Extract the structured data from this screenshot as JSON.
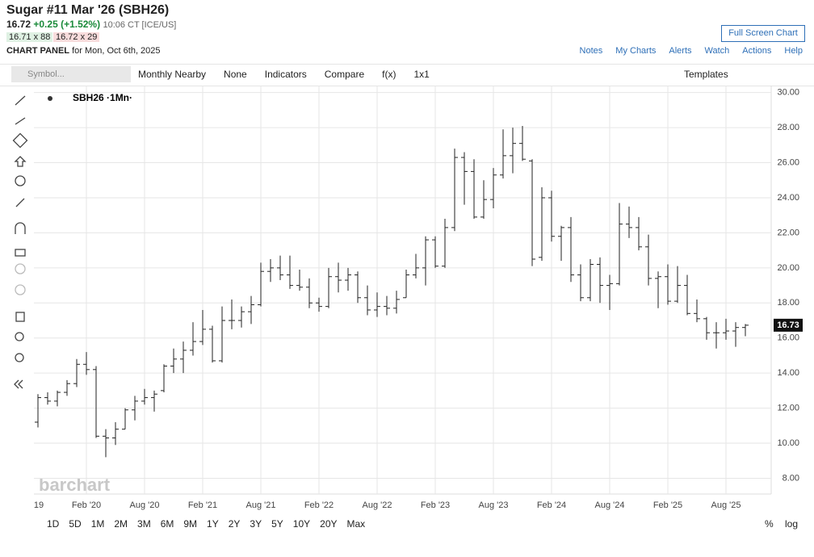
{
  "header": {
    "title": "Sugar #11 Mar '26 (SBH26)",
    "last": "16.72",
    "change": "+0.25 (+1.52%)",
    "time": "10:06 CT [ICE/US]",
    "bid": "16.71 x 88",
    "ask": "16.72 x 29",
    "panel": "CHART PANEL",
    "panel_date": "for Mon, Oct 6th, 2025",
    "fullscreen": "Full Screen Chart",
    "links": [
      "Notes",
      "My Charts",
      "Alerts",
      "Watch",
      "Actions",
      "Help"
    ]
  },
  "toolbar": {
    "symbol": "Symbol...",
    "items": [
      "Monthly Nearby",
      "None",
      "Indicators",
      "Compare",
      "f(x)",
      "1x1"
    ],
    "templates": "Templates"
  },
  "legend": "SBH26 ·1Mn·",
  "watermark": "barchart",
  "bottom": {
    "ranges": [
      "1D",
      "5D",
      "1M",
      "2M",
      "3M",
      "6M",
      "9M",
      "1Y",
      "2Y",
      "3Y",
      "5Y",
      "10Y",
      "20Y",
      "Max"
    ],
    "percent": "%",
    "log": "log"
  },
  "chart_data": {
    "type": "ohlc",
    "color": "#222222",
    "categories": [
      "19",
      null,
      null,
      null,
      null,
      null,
      "Feb '20",
      null,
      null,
      null,
      null,
      null,
      "Aug '20",
      null,
      null,
      null,
      null,
      null,
      "Feb '21",
      null,
      null,
      null,
      null,
      null,
      "Aug '21",
      null,
      null,
      null,
      null,
      null,
      "Feb '22",
      null,
      null,
      null,
      null,
      null,
      "Aug '22",
      null,
      null,
      null,
      null,
      null,
      "Feb '23",
      null,
      null,
      null,
      null,
      null,
      "Aug '23",
      null,
      null,
      null,
      null,
      null,
      "Feb '24",
      null,
      null,
      null,
      null,
      null,
      "Aug '24",
      null,
      null,
      null,
      null,
      null,
      "Feb '25",
      null,
      null,
      null,
      null,
      null,
      "Aug '25",
      null,
      null
    ],
    "open": [
      null,
      11.2,
      12.6,
      12.4,
      12.9,
      13.4,
      14.5,
      14.2,
      10.4,
      10.3,
      10.8,
      11.9,
      12.4,
      12.6,
      13.0,
      14.4,
      14.8,
      15.3,
      15.8,
      16.5,
      14.7,
      17.0,
      17.0,
      17.5,
      17.9,
      19.8,
      20.0,
      19.6,
      19.0,
      18.9,
      18.0,
      17.8,
      19.5,
      19.3,
      19.6,
      18.3,
      17.6,
      17.8,
      17.7,
      18.3,
      19.6,
      20.0,
      21.6,
      20.1,
      22.3,
      26.3,
      25.5,
      22.9,
      23.9,
      25.3,
      26.4,
      27.1,
      26.1,
      20.6,
      24.0,
      21.8,
      22.3,
      19.6,
      18.3,
      20.2,
      19.0,
      19.1,
      22.5,
      22.3,
      21.2,
      19.4,
      19.5,
      18.1,
      19.0,
      17.4,
      17.1,
      16.3,
      16.3,
      16.4,
      16.6
    ],
    "high": [
      null,
      12.8,
      12.9,
      13.0,
      13.6,
      14.8,
      15.2,
      14.4,
      10.8,
      11.2,
      12.0,
      12.7,
      13.1,
      13.0,
      14.5,
      15.4,
      15.8,
      16.9,
      17.6,
      16.7,
      17.8,
      18.2,
      17.8,
      18.4,
      20.3,
      20.5,
      20.7,
      20.7,
      19.9,
      19.4,
      18.3,
      20.0,
      20.3,
      20.0,
      19.8,
      19.0,
      18.6,
      18.4,
      18.7,
      19.9,
      20.8,
      21.8,
      21.8,
      22.8,
      26.8,
      26.6,
      26.2,
      25.0,
      25.7,
      27.9,
      28.0,
      28.1,
      26.2,
      24.6,
      24.4,
      22.4,
      22.9,
      20.2,
      20.5,
      20.6,
      19.6,
      23.7,
      23.5,
      22.9,
      21.9,
      19.8,
      20.2,
      20.1,
      19.6,
      18.2,
      17.2,
      16.9,
      17.1,
      16.9,
      16.8
    ],
    "low": [
      null,
      10.9,
      12.2,
      12.1,
      12.7,
      13.2,
      13.9,
      10.3,
      9.2,
      9.9,
      10.8,
      11.3,
      12.2,
      11.8,
      12.9,
      14.0,
      14.0,
      15.0,
      15.6,
      14.6,
      14.6,
      16.5,
      16.6,
      16.8,
      17.8,
      19.2,
      19.3,
      18.8,
      18.7,
      17.7,
      17.5,
      17.7,
      18.6,
      18.7,
      18.0,
      17.3,
      17.2,
      17.3,
      17.4,
      18.3,
      19.4,
      19.0,
      20.0,
      20.0,
      22.1,
      23.6,
      22.8,
      22.8,
      23.4,
      25.1,
      25.4,
      26.1,
      20.1,
      20.4,
      21.5,
      20.4,
      19.2,
      18.1,
      18.1,
      18.0,
      17.6,
      19.0,
      21.7,
      21.0,
      19.0,
      17.7,
      17.9,
      18.0,
      17.3,
      16.9,
      15.9,
      15.4,
      15.9,
      15.5,
      16.1
    ],
    "close": [
      null,
      12.6,
      12.4,
      12.9,
      13.4,
      14.5,
      14.2,
      10.4,
      10.3,
      10.8,
      11.9,
      12.4,
      12.6,
      12.8,
      14.4,
      14.8,
      15.3,
      15.8,
      16.5,
      14.7,
      17.0,
      17.0,
      17.5,
      17.9,
      19.8,
      20.0,
      19.6,
      19.0,
      18.9,
      18.0,
      17.8,
      19.5,
      19.3,
      19.6,
      18.3,
      17.6,
      17.8,
      17.7,
      18.2,
      19.6,
      20.0,
      21.6,
      20.1,
      22.3,
      26.3,
      25.5,
      22.9,
      23.9,
      25.3,
      26.4,
      27.1,
      26.2,
      20.5,
      24.0,
      21.8,
      22.3,
      19.6,
      18.3,
      20.2,
      19.0,
      19.1,
      22.5,
      22.3,
      21.2,
      19.4,
      19.5,
      18.1,
      19.0,
      17.4,
      17.1,
      16.3,
      16.3,
      16.4,
      16.6,
      16.73
    ],
    "ylim": [
      7.1,
      30.4
    ],
    "yticks": [
      {
        "value": 8,
        "label": "8.00"
      },
      {
        "value": 10,
        "label": "10.00"
      },
      {
        "value": 12,
        "label": "12.00"
      },
      {
        "value": 14,
        "label": "14.00"
      },
      {
        "value": 16,
        "label": "16.00"
      },
      {
        "value": 18,
        "label": "18.00"
      },
      {
        "value": 20,
        "label": "20.00"
      },
      {
        "value": 22,
        "label": "22.00"
      },
      {
        "value": 24,
        "label": "24.00"
      },
      {
        "value": 26,
        "label": "26.00"
      },
      {
        "value": 28,
        "label": "28.00"
      },
      {
        "value": 30,
        "label": "30.00"
      }
    ],
    "grid": true
  }
}
